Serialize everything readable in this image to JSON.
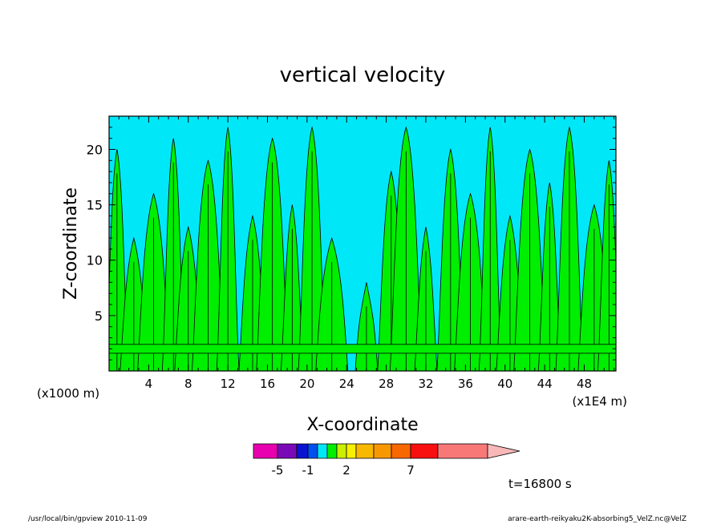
{
  "chart_data": {
    "type": "heatmap",
    "title": "vertical velocity",
    "xlabel": "X-coordinate",
    "ylabel": "Z-coordinate",
    "x_unit_left": "(x1000 m)",
    "x_unit_right": "(x1E4 m)",
    "xlim": [
      0,
      51.2
    ],
    "ylim": [
      0,
      23
    ],
    "x_ticks": [
      "4",
      "8",
      "12",
      "16",
      "20",
      "24",
      "28",
      "32",
      "36",
      "40",
      "44",
      "48"
    ],
    "y_ticks": [
      "5",
      "10",
      "15",
      "20"
    ],
    "x_tick_values": [
      4,
      8,
      12,
      16,
      20,
      24,
      28,
      32,
      36,
      40,
      44,
      48
    ],
    "y_tick_values": [
      5,
      10,
      15,
      20
    ],
    "colors": {
      "negative": "#00e8f8",
      "positive": "#00ee00",
      "contour": "#000000"
    },
    "updraft_columns": [
      {
        "x": 0.8,
        "top": 20
      },
      {
        "x": 2.5,
        "top": 12
      },
      {
        "x": 4.5,
        "top": 16
      },
      {
        "x": 6.5,
        "top": 21
      },
      {
        "x": 8.0,
        "top": 13
      },
      {
        "x": 10.0,
        "top": 19
      },
      {
        "x": 12.0,
        "top": 22
      },
      {
        "x": 14.5,
        "top": 14
      },
      {
        "x": 16.5,
        "top": 21
      },
      {
        "x": 18.5,
        "top": 15
      },
      {
        "x": 20.5,
        "top": 22
      },
      {
        "x": 22.5,
        "top": 12
      },
      {
        "x": 26.0,
        "top": 8
      },
      {
        "x": 28.5,
        "top": 18
      },
      {
        "x": 30.0,
        "top": 22
      },
      {
        "x": 32.0,
        "top": 13
      },
      {
        "x": 34.5,
        "top": 20
      },
      {
        "x": 36.5,
        "top": 16
      },
      {
        "x": 38.5,
        "top": 22
      },
      {
        "x": 40.5,
        "top": 14
      },
      {
        "x": 42.5,
        "top": 20
      },
      {
        "x": 44.5,
        "top": 17
      },
      {
        "x": 46.5,
        "top": 22
      },
      {
        "x": 49.0,
        "top": 15
      },
      {
        "x": 50.5,
        "top": 19
      }
    ],
    "near_surface_band": [
      1.6,
      2.4
    ]
  },
  "colorbar": {
    "colors": [
      "#e800b0",
      "#7a0ab8",
      "#0a14d0",
      "#0050f0",
      "#00e8f8",
      "#00ee00",
      "#ccee00",
      "#f8f000",
      "#f8b800",
      "#f89800",
      "#f86800",
      "#f81010",
      "#f87878",
      "#f8b8b8"
    ],
    "tick_labels": [
      "-5",
      "-1",
      "2",
      "7"
    ]
  },
  "time_label": "t=16800 s",
  "footer_left": "/usr/local/bin/gpview   2010-11-09",
  "footer_right": "arare-earth-reikyaku2K-absorbing5_VelZ.nc@VelZ"
}
